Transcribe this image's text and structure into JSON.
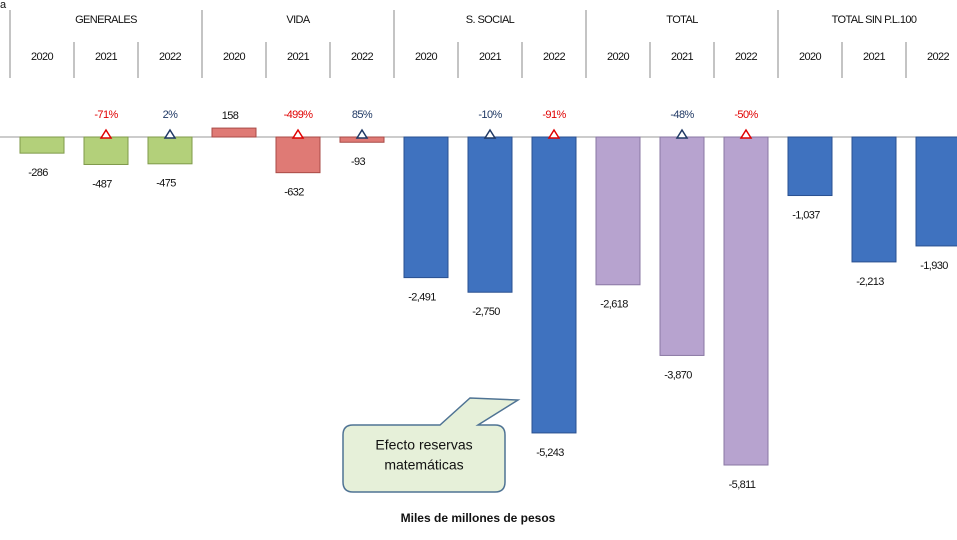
{
  "chart_data": {
    "type": "grouped-bar",
    "corner_text": "a",
    "xlabel": "Miles de millones de pesos",
    "groups": [
      {
        "name": "GENERALES",
        "color": "#b3d07a",
        "edge": "#7f9a4a",
        "categories": [
          "2020",
          "2021",
          "2022"
        ],
        "values": [
          -286,
          -487,
          -475
        ],
        "value_labels": [
          "-286",
          "-487",
          "-475"
        ],
        "changes": [
          null,
          "-71%",
          "2%"
        ],
        "change_colors": [
          null,
          "#e00000",
          "#1f3864"
        ]
      },
      {
        "name": "VIDA",
        "color": "#df7a75",
        "edge": "#a84b47",
        "categories": [
          "2020",
          "2021",
          "2022"
        ],
        "values": [
          158,
          -632,
          -93
        ],
        "value_labels": [
          "158",
          "-632",
          "-93"
        ],
        "changes": [
          null,
          "-499%",
          "85%"
        ],
        "change_colors": [
          null,
          "#e00000",
          "#1f3864"
        ]
      },
      {
        "name": "S. SOCIAL",
        "color": "#3f72bf",
        "edge": "#2a5090",
        "categories": [
          "2020",
          "2021",
          "2022"
        ],
        "values": [
          -2491,
          -2750,
          -5243
        ],
        "value_labels": [
          "-2,491",
          "-2,750",
          "-5,243"
        ],
        "changes": [
          null,
          "-10%",
          "-91%"
        ],
        "change_colors": [
          null,
          "#1f3864",
          "#e00000"
        ]
      },
      {
        "name": "TOTAL",
        "color": "#b7a3cf",
        "edge": "#8a77a3",
        "categories": [
          "2020",
          "2021",
          "2022"
        ],
        "values": [
          -2618,
          -3870,
          -5811
        ],
        "value_labels": [
          "-2,618",
          "-3,870",
          "-5,811"
        ],
        "changes": [
          null,
          "-48%",
          "-50%"
        ],
        "change_colors": [
          null,
          "#1f3864",
          "#e00000"
        ]
      },
      {
        "name": "TOTAL SIN P.L.100",
        "color": "#3f72bf",
        "edge": "#2a5090",
        "categories": [
          "2020",
          "2021",
          "2022"
        ],
        "values": [
          -1037,
          -2213,
          -1930
        ],
        "value_labels": [
          "-1,037",
          "-2,213",
          "-1,930"
        ]
      }
    ],
    "annotation": {
      "lines": [
        "Efecto reservas",
        "matemáticas"
      ]
    }
  }
}
